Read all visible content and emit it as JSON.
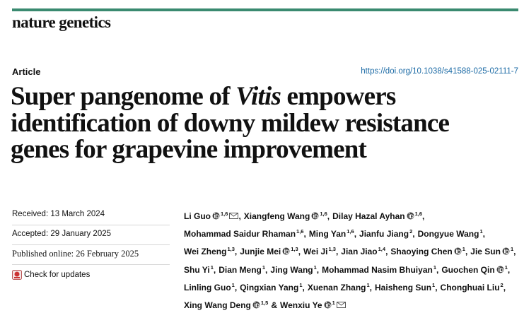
{
  "header": {
    "journal": "nature genetics",
    "article_type": "Article",
    "doi": "https://doi.org/10.1038/s41588-025-02111-7"
  },
  "title_lines": [
    [
      {
        "text": "Super pangenome of "
      },
      {
        "text": "Vitis",
        "italic": true
      },
      {
        "text": " empowers"
      }
    ],
    [
      {
        "text": "identification of downy mildew resistance"
      }
    ],
    [
      {
        "text": "genes for grapevine improvement"
      }
    ]
  ],
  "meta": {
    "received": "Received: 13 March 2024",
    "accepted": "Accepted: 29 January 2025",
    "published": "Published online: 26 February 2025",
    "check_updates": "Check for updates"
  },
  "authors": [
    [
      {
        "name": "Li Guo",
        "orcid": true,
        "sup": "1,6",
        "corresponding": true,
        "sep": ","
      },
      {
        "name": "Xiangfeng Wang",
        "orcid": true,
        "sup": "1,6",
        "sep": ","
      },
      {
        "name": "Dilay Hazal Ayhan",
        "orcid": true,
        "sup": "1,6",
        "sep": ","
      }
    ],
    [
      {
        "name": "Mohammad Saidur Rhaman",
        "sup": "1,6",
        "sep": ","
      },
      {
        "name": "Ming Yan",
        "sup": "1,6",
        "sep": ","
      },
      {
        "name": "Jianfu Jiang",
        "sup": "2",
        "sep": ","
      },
      {
        "name": "Dongyue Wang",
        "sup": "1",
        "sep": ","
      }
    ],
    [
      {
        "name": "Wei Zheng",
        "sup": "1,3",
        "sep": ","
      },
      {
        "name": "Junjie Mei",
        "orcid": true,
        "sup": "1,3",
        "sep": ","
      },
      {
        "name": "Wei Ji",
        "sup": "1,3",
        "sep": ","
      },
      {
        "name": "Jian Jiao",
        "sup": "1,4",
        "sep": ","
      },
      {
        "name": "Shaoying Chen",
        "orcid": true,
        "sup": "1",
        "sep": ","
      },
      {
        "name": "Jie Sun",
        "orcid": true,
        "sup": "1",
        "sep": ","
      }
    ],
    [
      {
        "name": "Shu Yi",
        "sup": "1",
        "sep": ","
      },
      {
        "name": "Dian Meng",
        "sup": "1",
        "sep": ","
      },
      {
        "name": "Jing Wang",
        "sup": "1",
        "sep": ","
      },
      {
        "name": "Mohammad Nasim Bhuiyan",
        "sup": "1",
        "sep": ","
      },
      {
        "name": "Guochen Qin",
        "orcid": true,
        "sup": "1",
        "sep": ","
      }
    ],
    [
      {
        "name": "Linling Guo",
        "sup": "1",
        "sep": ","
      },
      {
        "name": "Qingxian Yang",
        "sup": "1",
        "sep": ","
      },
      {
        "name": "Xuenan Zhang",
        "sup": "1",
        "sep": ","
      },
      {
        "name": "Haisheng Sun",
        "sup": "1",
        "sep": ","
      },
      {
        "name": "Chonghuai Liu",
        "sup": "2",
        "sep": ","
      }
    ],
    [
      {
        "name": "Xing Wang Deng",
        "orcid": true,
        "sup": "1,5",
        "sep": "&"
      },
      {
        "name": "Wenxiu Ye",
        "orcid": true,
        "sup": "1",
        "corresponding": true
      }
    ]
  ]
}
